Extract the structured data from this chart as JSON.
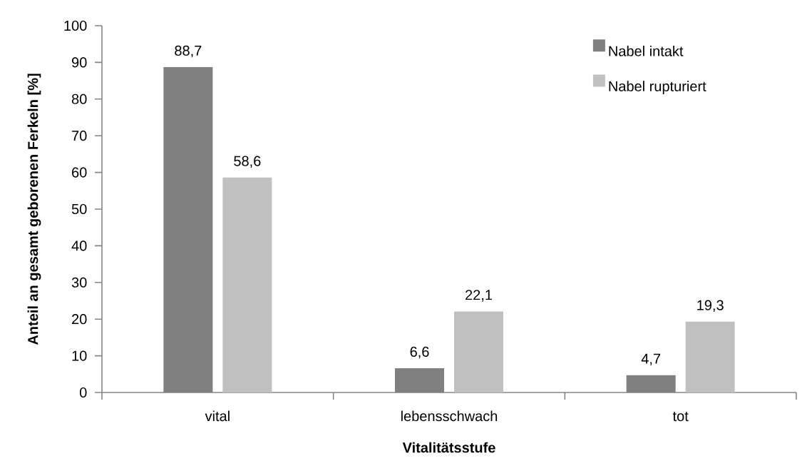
{
  "chart_data": {
    "type": "bar",
    "xlabel": "Vitalitätsstufe",
    "ylabel": "Anteil an gesamt geborenen Ferkeln [%]",
    "categories": [
      "vital",
      "lebensschwach",
      "tot"
    ],
    "series": [
      {
        "name": "Nabel intakt",
        "color": "#808080",
        "values": [
          88.7,
          6.6,
          4.7
        ],
        "value_labels": [
          "88,7",
          "6,6",
          "4,7"
        ]
      },
      {
        "name": "Nabel rupturiert",
        "color": "#c0c0c0",
        "values": [
          58.6,
          22.1,
          19.3
        ],
        "value_labels": [
          "58,6",
          "22,1",
          "19,3"
        ]
      }
    ],
    "ylim": [
      0,
      100
    ],
    "yticks": [
      0,
      10,
      20,
      30,
      40,
      50,
      60,
      70,
      80,
      90,
      100
    ],
    "grid": false,
    "legend": "top right"
  }
}
